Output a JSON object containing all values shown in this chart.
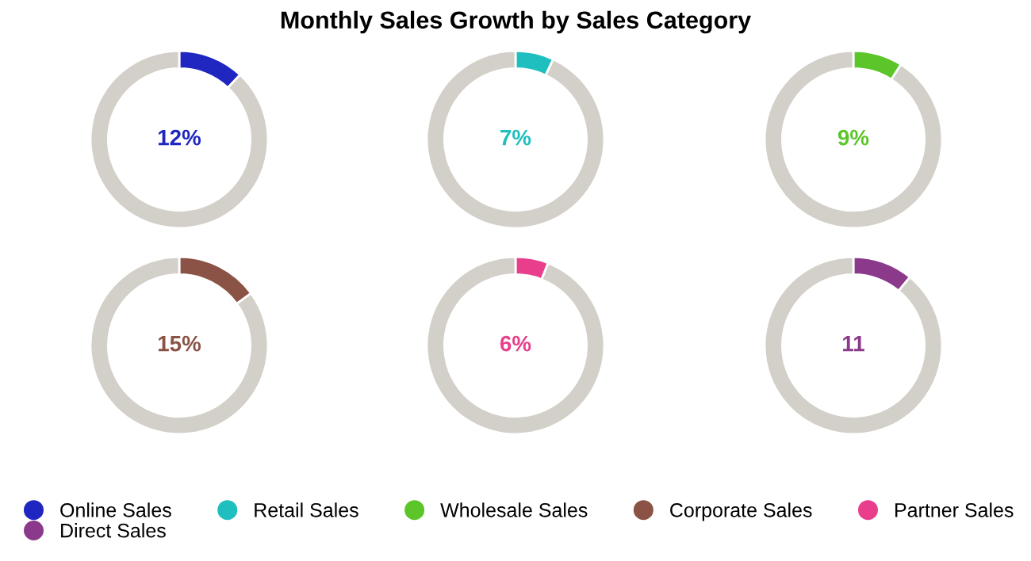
{
  "chart_data": [
    {
      "type": "other",
      "title": "Monthly Sales Growth by Sales Category"
    },
    {
      "type": "donut",
      "categories": [
        "Online Sales",
        null
      ],
      "values": [
        12,
        88
      ],
      "colors": [
        "#1f27c0",
        "#d3d0c9"
      ],
      "value_labels": [
        "12%",
        null
      ],
      "legend": "bottom"
    },
    {
      "type": "donut",
      "categories": [
        "Retail Sales",
        null
      ],
      "values": [
        7,
        93
      ],
      "colors": [
        "#1fbfbf",
        "#d3d0c9"
      ],
      "value_labels": [
        "7%",
        null
      ],
      "legend": "bottom"
    },
    {
      "type": "donut",
      "categories": [
        "Wholesale Sales",
        null
      ],
      "values": [
        9,
        91
      ],
      "colors": [
        "#5cc52a",
        "#d3d0c9"
      ],
      "value_labels": [
        "9%",
        null
      ],
      "legend": "bottom"
    },
    {
      "type": "donut",
      "categories": [
        "Corporate Sales",
        null
      ],
      "values": [
        15,
        85
      ],
      "colors": [
        "#8b5346",
        "#d3d0c9"
      ],
      "value_labels": [
        "15%",
        null
      ],
      "legend": "bottom"
    },
    {
      "type": "donut",
      "categories": [
        "Partner Sales",
        null
      ],
      "values": [
        6,
        94
      ],
      "colors": [
        "#e83e8c",
        "#d3d0c9"
      ],
      "value_labels": [
        "6%",
        null
      ],
      "legend": "bottom"
    },
    {
      "type": "donut",
      "categories": [
        "Direct Sales",
        null
      ],
      "values": [
        11,
        89
      ],
      "colors": [
        "#8b3a8b",
        "#d3d0c9"
      ],
      "value_labels": [
        "11",
        null
      ],
      "legend": "bottom"
    }
  ]
}
